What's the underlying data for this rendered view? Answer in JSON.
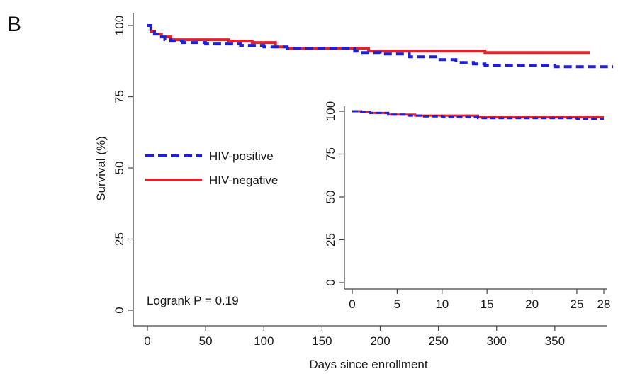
{
  "panel_label": "B",
  "colors": {
    "hiv_positive": "#1f1fd6",
    "hiv_negative": "#e0232b",
    "axis": "#444444"
  },
  "chart_data": [
    {
      "type": "line",
      "xlabel": "Days since enrollment",
      "ylabel": "Survival (%)",
      "xlim": [
        0,
        400
      ],
      "ylim": [
        0,
        100
      ],
      "xticks": [
        "0",
        "50",
        "100",
        "150",
        "200",
        "250",
        "300",
        "350"
      ],
      "yticks": [
        "0",
        "25",
        "50",
        "75",
        "100"
      ],
      "legend_position": "center-left",
      "annotation": "Logrank P = 0.19",
      "series": [
        {
          "name": "HIV-positive",
          "style": "dashed",
          "x": [
            0,
            3,
            6,
            10,
            15,
            20,
            30,
            50,
            75,
            80,
            100,
            120,
            150,
            170,
            178,
            182,
            200,
            225,
            250,
            265,
            280,
            290,
            345,
            350,
            400
          ],
          "y": [
            100,
            98.5,
            97,
            96,
            95,
            94.5,
            94,
            93.5,
            93.5,
            93,
            92.5,
            92,
            92,
            92,
            91,
            90.5,
            90,
            89,
            88,
            87,
            86.5,
            86,
            86,
            85.5,
            85.5
          ]
        },
        {
          "name": "HIV-negative",
          "style": "solid",
          "x": [
            0,
            3,
            6,
            12,
            20,
            50,
            70,
            90,
            110,
            120,
            180,
            190,
            280,
            290,
            380
          ],
          "y": [
            100,
            98,
            97,
            96,
            95,
            95,
            94.5,
            94,
            92.5,
            92,
            92,
            91,
            91,
            90.5,
            90.5
          ]
        }
      ]
    },
    {
      "type": "line",
      "xlim": [
        0,
        28
      ],
      "ylim": [
        0,
        100
      ],
      "xticks": [
        "0",
        "5",
        "10",
        "15",
        "20",
        "25",
        "28"
      ],
      "yticks": [
        "0",
        "25",
        "50",
        "75",
        "100"
      ],
      "series": [
        {
          "style": "dashed",
          "x": [
            0,
            1,
            2,
            4,
            6,
            8,
            10,
            14,
            20,
            25,
            28
          ],
          "y": [
            100,
            99.5,
            99,
            98,
            97.5,
            97,
            96.5,
            96,
            96,
            95.5,
            95.5
          ]
        },
        {
          "style": "solid",
          "x": [
            0,
            1,
            2,
            4,
            7,
            10,
            13,
            14,
            20,
            25,
            28
          ],
          "y": [
            100,
            99.5,
            99,
            98,
            97.5,
            97.5,
            97.5,
            96.5,
            96.5,
            96.5,
            96.5
          ]
        }
      ]
    }
  ]
}
